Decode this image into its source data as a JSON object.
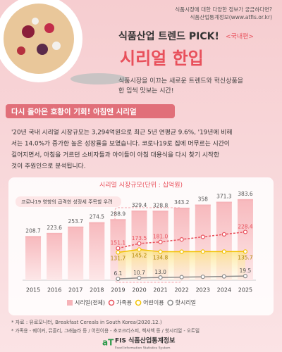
{
  "header": {
    "info_lines": [
      "식품시장에 대한 다양한 정보가 궁금하다면?",
      "식품산업통계정보(www.atfis.or.kr)"
    ],
    "title1": "식품산업 트렌드 PICK!",
    "tag": "<국내편>",
    "title2": "시리얼 한입",
    "subtitle_lines": [
      "식품시장을 이끄는 새로운 트렌드와 혁신상품을",
      "한 입씩 맛보는 시간!"
    ]
  },
  "section": {
    "heading": "다시 돌아온 호황이 기회! 아침엔 시리얼",
    "body_lines": [
      "'20년 국내 시리얼 시장규모는 3,294억원으로 최근 5년 연평균 9.6%, '19년에 비해",
      "서는 14.0%가 증가한 높은 성장률을 보였습니다. 코로나19로 집에 머무르는 시간이",
      "길어지면서, 아침을 거르던 소비자들과 아이들이 아침 대용식을 다시 찾기 시작한",
      "것이 주원인으로 분석됩니다."
    ]
  },
  "chart_data": {
    "type": "bar",
    "title": "시리얼 시장규모(단위 : 십억원)",
    "annotation": "코로나19 영향의 급격한 성장세 주목할 우려",
    "categories": [
      "2015",
      "2016",
      "2017",
      "2018",
      "2019",
      "2020",
      "2021",
      "2022",
      "2023",
      "2024",
      "2025"
    ],
    "ylim": [
      0,
      420
    ],
    "legend": "bottom",
    "series": [
      {
        "name": "시리얼(전체)",
        "type": "bar",
        "color": "#f6b3b8",
        "values": [
          208.7,
          223.6,
          253.7,
          274.5,
          288.9,
          329.4,
          328.8,
          343.2,
          358,
          371.3,
          383.6
        ]
      },
      {
        "name": "가족용",
        "type": "line",
        "color": "#e8505b",
        "values": [
          null,
          null,
          null,
          null,
          151.1,
          173.5,
          181.0,
          193,
          205,
          217,
          228.4
        ],
        "value_labels": [
          null,
          null,
          null,
          null,
          "151.1",
          "173.5",
          "181.0",
          null,
          null,
          null,
          "228.4"
        ]
      },
      {
        "name": "어린이용",
        "type": "line",
        "color": "#f2c200",
        "values": [
          null,
          null,
          null,
          null,
          131.7,
          145.2,
          134.8,
          135,
          135.3,
          135.5,
          135.7
        ],
        "value_labels": [
          null,
          null,
          null,
          null,
          "131.7",
          "145.2",
          "134.8",
          null,
          null,
          null,
          "135.7"
        ]
      },
      {
        "name": "핫시리얼",
        "type": "line",
        "color": "#8c8c8c",
        "values": [
          null,
          null,
          null,
          null,
          6.1,
          10.7,
          13.0,
          14.5,
          16,
          17.8,
          19.5
        ],
        "value_labels": [
          null,
          null,
          null,
          null,
          "6.1",
          "10.7",
          "13.0",
          null,
          null,
          null,
          "19.5"
        ]
      }
    ]
  },
  "footnotes": [
    "* 자료 : 유로모니터, Breakfast Cereals in South Korea(2020.12.)",
    "* 가족용 - 퀘이커, 뮤즐리, 그래놀라 등 / 어린이용 - 초코크리스피, 첵셔첵 등 / 핫시리얼 - 오트밀"
  ],
  "logo": {
    "mark": "aT",
    "name": "FIS 식품산업통계정보",
    "english": "Food Information Statistics System"
  }
}
